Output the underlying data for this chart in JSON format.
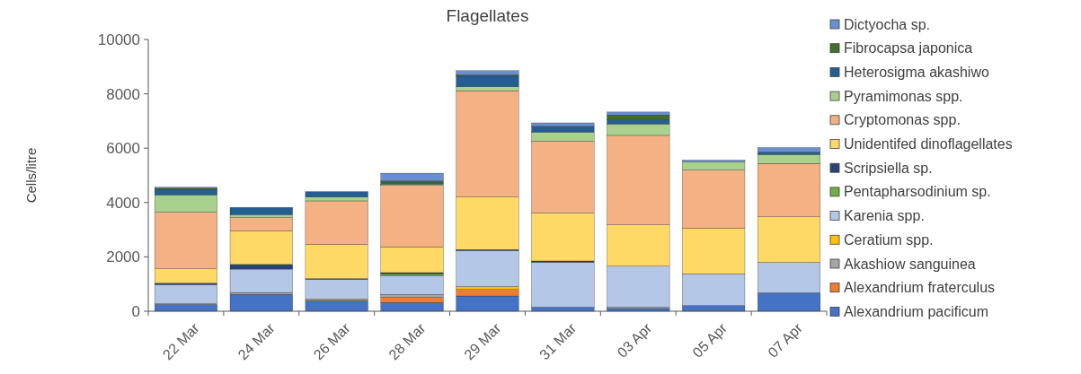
{
  "chart_data": {
    "type": "bar",
    "title": "Flagellates",
    "ylabel": "Cells/litre",
    "stacked": true,
    "legend": "right",
    "grid": false,
    "categories": [
      "22 Mar",
      "24 Mar",
      "26 Mar",
      "28 Mar",
      "29 Mar",
      "31 Mar",
      "03 Apr",
      "05 Apr",
      "07 Apr"
    ],
    "ylim": [
      0,
      10000
    ],
    "yticks": [
      0,
      2000,
      4000,
      6000,
      8000,
      10000
    ],
    "series": [
      {
        "name": "Alexandrium  pacificum",
        "color": "#4472c4",
        "values": [
          250,
          620,
          400,
          320,
          560,
          150,
          100,
          210,
          680
        ]
      },
      {
        "name": "Alexandrium fraterculus",
        "color": "#ed7d31",
        "values": [
          0,
          0,
          0,
          190,
          240,
          0,
          0,
          0,
          0
        ]
      },
      {
        "name": "Akashiow sanguinea",
        "color": "#a5a5a5",
        "values": [
          30,
          70,
          0,
          110,
          0,
          0,
          50,
          0,
          0
        ]
      },
      {
        "name": "Ceratium spp.",
        "color": "#ffc000",
        "values": [
          0,
          0,
          50,
          0,
          110,
          0,
          0,
          0,
          0
        ]
      },
      {
        "name": "Karenia spp.",
        "color": "#b4c7e7",
        "values": [
          700,
          860,
          720,
          690,
          1320,
          1650,
          1510,
          1170,
          1120
        ]
      },
      {
        "name": "Pentapharsodinium sp.",
        "color": "#70ad47",
        "values": [
          0,
          0,
          0,
          70,
          0,
          0,
          0,
          0,
          0
        ]
      },
      {
        "name": "Scripsiella sp.",
        "color": "#264478",
        "values": [
          50,
          170,
          30,
          40,
          40,
          50,
          0,
          0,
          0
        ]
      },
      {
        "name": "Unidentifed dinoflagellates",
        "color": "#ffd966",
        "values": [
          530,
          1240,
          1270,
          950,
          1940,
          1770,
          1520,
          1680,
          1670
        ]
      },
      {
        "name": "Cryptomonas spp.",
        "color": "#f4b183",
        "values": [
          2090,
          490,
          1590,
          2260,
          3900,
          2640,
          3290,
          2140,
          1970
        ]
      },
      {
        "name": "Pyramimonas spp.",
        "color": "#a9d18e",
        "values": [
          630,
          100,
          140,
          50,
          150,
          330,
          420,
          300,
          330
        ]
      },
      {
        "name": "Heterosigma akashiwo",
        "color": "#255e91",
        "values": [
          200,
          270,
          200,
          60,
          390,
          220,
          160,
          0,
          90
        ]
      },
      {
        "name": "Fibrocapsa japonica",
        "color": "#3f6f2a",
        "values": [
          50,
          0,
          0,
          60,
          50,
          0,
          170,
          0,
          0
        ]
      },
      {
        "name": "Dictyocha sp.",
        "color": "#6a8fd0",
        "values": [
          30,
          0,
          0,
          280,
          150,
          120,
          110,
          60,
          160
        ]
      }
    ]
  }
}
